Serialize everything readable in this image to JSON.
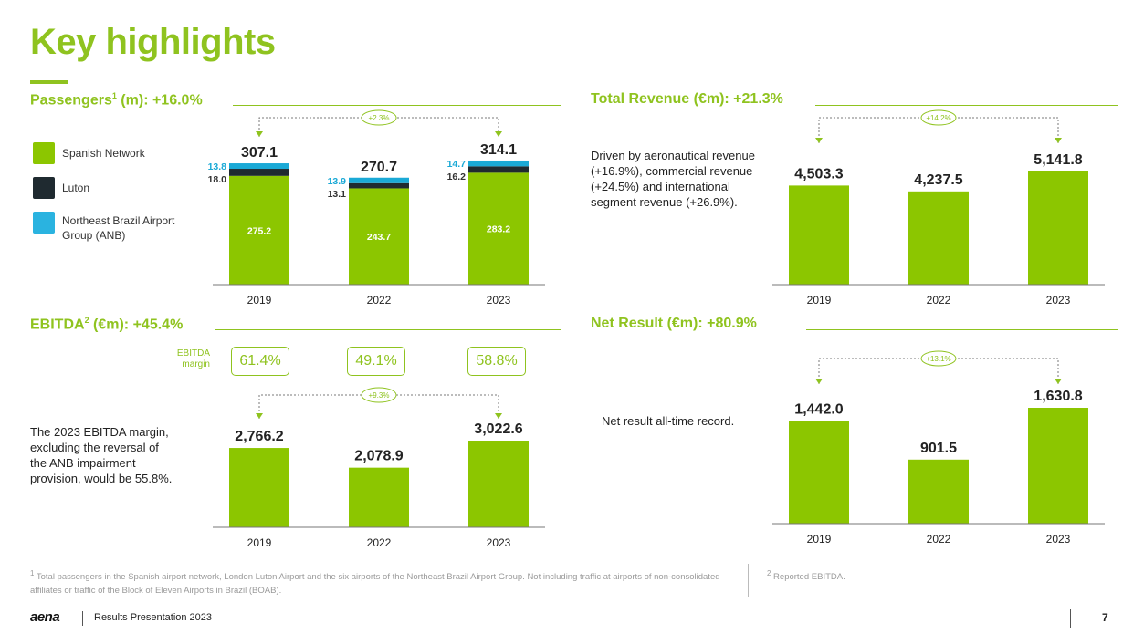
{
  "title": "Key highlights",
  "colors": {
    "green": "#8fc31f",
    "bar": "#8cc600",
    "luton": "#1f2a30",
    "anb": "#1aa9d6",
    "legend_anb": "#2ab3e0"
  },
  "passengers": {
    "title_main": "Passengers",
    "title_sup": "1",
    "title_rest": " (m): +16.0%",
    "legend": [
      {
        "label": "Spanish Network",
        "color": "#8cc600"
      },
      {
        "label": "Luton",
        "color": "#1f2a30"
      },
      {
        "label": "Northeast Brazil Airport Group (ANB)",
        "color": "#2ab3e0"
      }
    ]
  },
  "revenue": {
    "title": "Total Revenue (€m): +21.3%",
    "description": "Driven by aeronautical revenue (+16.9%), commercial revenue (+24.5%) and international segment revenue (+26.9%)."
  },
  "ebitda": {
    "title_main": "EBITDA",
    "title_sup": "2",
    "title_rest": " (€m): +45.4%",
    "margin_label": "EBITDA margin",
    "margins": [
      "61.4%",
      "49.1%",
      "58.8%"
    ],
    "description": "The 2023 EBITDA margin, excluding the reversal of the ANB impairment provision, would be 55.8%."
  },
  "net": {
    "title": "Net Result (€m): +80.9%",
    "description": "Net result all-time record."
  },
  "chart_data": [
    {
      "type": "bar",
      "stacked": true,
      "categories": [
        "2019",
        "2022",
        "2023"
      ],
      "series": [
        {
          "name": "Spanish Network",
          "values": [
            275.2,
            243.7,
            283.2
          ]
        },
        {
          "name": "Luton",
          "values": [
            18.0,
            13.1,
            16.2
          ]
        },
        {
          "name": "Northeast Brazil Airport Group (ANB)",
          "values": [
            13.8,
            13.9,
            14.7
          ]
        }
      ],
      "totals": [
        "307.1",
        "270.7",
        "314.1"
      ],
      "value_labels": {
        "spanish": [
          "275.2",
          "243.7",
          "283.2"
        ],
        "luton": [
          "18.0",
          "13.1",
          "16.2"
        ],
        "anb": [
          "13.8",
          "13.9",
          "14.7"
        ]
      },
      "growth_label": "+2.3%",
      "ylim": [
        0,
        330
      ]
    },
    {
      "type": "bar",
      "categories": [
        "2019",
        "2022",
        "2023"
      ],
      "values": [
        4503.3,
        4237.5,
        5141.8
      ],
      "labels": [
        "4,503.3",
        "4,237.5",
        "5,141.8"
      ],
      "growth_label": "+14.2%",
      "ylim": [
        0,
        5800
      ]
    },
    {
      "type": "bar",
      "categories": [
        "2019",
        "2022",
        "2023"
      ],
      "values": [
        2766.2,
        2078.9,
        3022.6
      ],
      "labels": [
        "2,766.2",
        "2,078.9",
        "3,022.6"
      ],
      "growth_label": "+9.3%",
      "ylim": [
        0,
        3400
      ]
    },
    {
      "type": "bar",
      "categories": [
        "2019",
        "2022",
        "2023"
      ],
      "values": [
        1442.0,
        901.5,
        1630.8
      ],
      "labels": [
        "1,442.0",
        "901.5",
        "1,630.8"
      ],
      "growth_label": "+13.1%",
      "ylim": [
        0,
        1800
      ]
    }
  ],
  "footnotes": {
    "note1_mark": "1",
    "note1": "Total passengers in the Spanish airport network, London Luton Airport and the six airports of the Northeast Brazil Airport Group. Not including traffic at airports of non-consolidated affiliates or traffic of the Block of Eleven Airports in Brazil (BOAB).",
    "note2_mark": "2",
    "note2": "Reported EBITDA."
  },
  "footer": {
    "logo": "aena",
    "text": "Results Presentation 2023",
    "page": "7"
  }
}
